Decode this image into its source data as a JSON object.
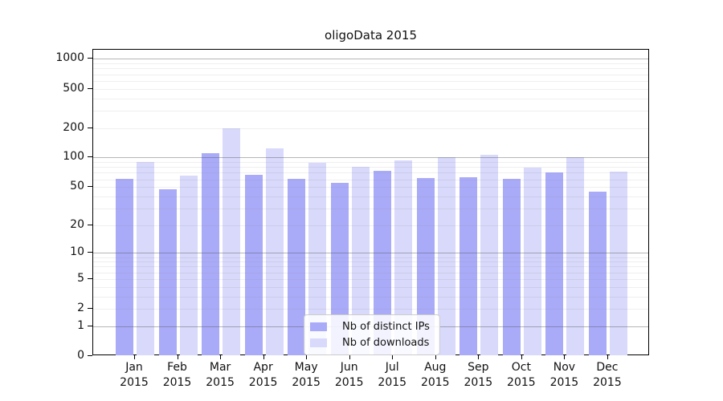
{
  "title": "oligoData 2015",
  "chart_data": {
    "type": "bar",
    "title": "oligoData 2015",
    "categories": [
      "Jan",
      "Feb",
      "Mar",
      "Apr",
      "May",
      "Jun",
      "Jul",
      "Aug",
      "Sep",
      "Oct",
      "Nov",
      "Dec"
    ],
    "year_label": "2015",
    "series": [
      {
        "name": "Nb of distinct IPs",
        "color": "#aaabf8",
        "values": [
          61,
          47,
          110,
          66,
          61,
          55,
          73,
          62,
          63,
          61,
          70,
          45
        ]
      },
      {
        "name": "Nb of downloads",
        "color": "#d8d9fb",
        "values": [
          90,
          65,
          200,
          125,
          88,
          81,
          94,
          101,
          107,
          79,
          100,
          72
        ]
      }
    ],
    "yscale": "log1p",
    "yticks": [
      0,
      1,
      2,
      5,
      10,
      20,
      50,
      100,
      200,
      500,
      1000
    ],
    "ylim": [
      0,
      1215
    ],
    "xlabel": "",
    "ylabel": "",
    "grid": "both",
    "legend_position": "inside lower center"
  },
  "legend": {
    "items": [
      {
        "label": "Nb of distinct IPs",
        "color": "#aaabf8"
      },
      {
        "label": "Nb of downloads",
        "color": "#d8d9fb"
      }
    ]
  },
  "colors": {
    "bar_ips": "#aaabf8",
    "bar_downloads": "#d8d9fb",
    "axis": "#000000",
    "background": "#ffffff"
  }
}
